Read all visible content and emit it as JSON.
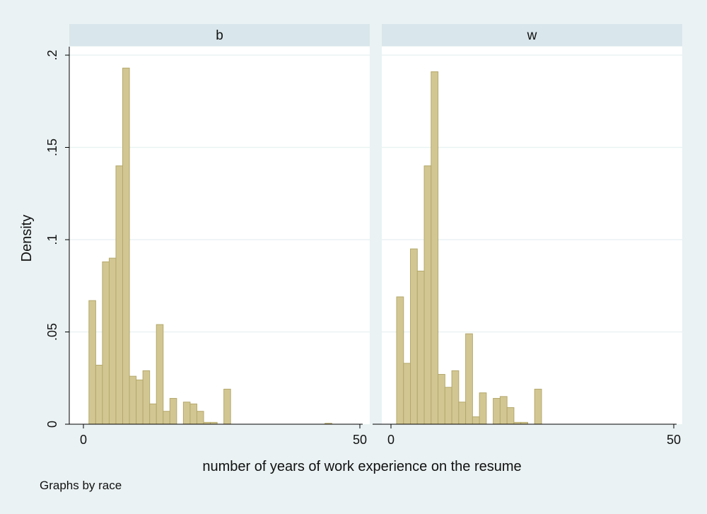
{
  "chart_data": {
    "type": "bar",
    "subtype": "histogram",
    "ylabel": "Density",
    "xlabel": "number of years of work experience on the resume",
    "note": "Graphs by race",
    "xlim": [
      0,
      50
    ],
    "ylim": [
      0,
      0.2
    ],
    "xticks": [
      {
        "v": 0,
        "label": "0"
      },
      {
        "v": 50,
        "label": "50"
      }
    ],
    "yticks": [
      {
        "v": 0,
        "label": "0"
      },
      {
        "v": 0.05,
        "label": ".05"
      },
      {
        "v": 0.1,
        "label": ".1"
      },
      {
        "v": 0.15,
        "label": ".15"
      },
      {
        "v": 0.2,
        "label": ".2"
      }
    ],
    "bar_color": "#d2c792",
    "bar_edge": "#b4a86c",
    "panels": [
      {
        "title": "b",
        "bins": [
          {
            "x0": 1.0,
            "x1": 2.22,
            "y": 0.067
          },
          {
            "x0": 2.22,
            "x1": 3.44,
            "y": 0.032
          },
          {
            "x0": 3.44,
            "x1": 4.66,
            "y": 0.088
          },
          {
            "x0": 4.66,
            "x1": 5.88,
            "y": 0.09
          },
          {
            "x0": 5.88,
            "x1": 7.1,
            "y": 0.14
          },
          {
            "x0": 7.1,
            "x1": 8.32,
            "y": 0.193
          },
          {
            "x0": 8.32,
            "x1": 9.54,
            "y": 0.026
          },
          {
            "x0": 9.54,
            "x1": 10.76,
            "y": 0.024
          },
          {
            "x0": 10.76,
            "x1": 11.98,
            "y": 0.029
          },
          {
            "x0": 11.98,
            "x1": 13.2,
            "y": 0.011
          },
          {
            "x0": 13.2,
            "x1": 14.42,
            "y": 0.054
          },
          {
            "x0": 14.42,
            "x1": 15.64,
            "y": 0.007
          },
          {
            "x0": 15.64,
            "x1": 16.86,
            "y": 0.014
          },
          {
            "x0": 18.08,
            "x1": 19.3,
            "y": 0.012
          },
          {
            "x0": 19.3,
            "x1": 20.52,
            "y": 0.011
          },
          {
            "x0": 20.52,
            "x1": 21.74,
            "y": 0.007
          },
          {
            "x0": 21.74,
            "x1": 22.96,
            "y": 0.001
          },
          {
            "x0": 22.96,
            "x1": 24.18,
            "y": 0.001
          },
          {
            "x0": 25.4,
            "x1": 26.62,
            "y": 0.019
          },
          {
            "x0": 43.7,
            "x1": 44.92,
            "y": 0.0005
          }
        ]
      },
      {
        "title": "w",
        "bins": [
          {
            "x0": 1.0,
            "x1": 2.22,
            "y": 0.069
          },
          {
            "x0": 2.22,
            "x1": 3.44,
            "y": 0.033
          },
          {
            "x0": 3.44,
            "x1": 4.66,
            "y": 0.095
          },
          {
            "x0": 4.66,
            "x1": 5.88,
            "y": 0.083
          },
          {
            "x0": 5.88,
            "x1": 7.1,
            "y": 0.14
          },
          {
            "x0": 7.1,
            "x1": 8.32,
            "y": 0.191
          },
          {
            "x0": 8.32,
            "x1": 9.54,
            "y": 0.027
          },
          {
            "x0": 9.54,
            "x1": 10.76,
            "y": 0.02
          },
          {
            "x0": 10.76,
            "x1": 11.98,
            "y": 0.029
          },
          {
            "x0": 11.98,
            "x1": 13.2,
            "y": 0.012
          },
          {
            "x0": 13.2,
            "x1": 14.42,
            "y": 0.049
          },
          {
            "x0": 14.42,
            "x1": 15.64,
            "y": 0.004
          },
          {
            "x0": 15.64,
            "x1": 16.86,
            "y": 0.017
          },
          {
            "x0": 18.08,
            "x1": 19.3,
            "y": 0.014
          },
          {
            "x0": 19.3,
            "x1": 20.52,
            "y": 0.015
          },
          {
            "x0": 20.52,
            "x1": 21.74,
            "y": 0.009
          },
          {
            "x0": 21.74,
            "x1": 22.96,
            "y": 0.001
          },
          {
            "x0": 22.96,
            "x1": 24.18,
            "y": 0.001
          },
          {
            "x0": 25.4,
            "x1": 26.62,
            "y": 0.019
          }
        ]
      }
    ]
  }
}
